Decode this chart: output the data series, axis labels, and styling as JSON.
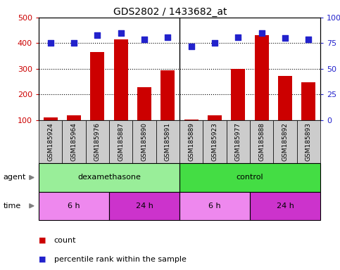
{
  "title": "GDS2802 / 1433682_at",
  "samples": [
    "GSM185924",
    "GSM185964",
    "GSM185976",
    "GSM185887",
    "GSM185890",
    "GSM185891",
    "GSM185889",
    "GSM185923",
    "GSM185977",
    "GSM185888",
    "GSM185892",
    "GSM185893"
  ],
  "counts": [
    110,
    120,
    365,
    415,
    228,
    295,
    103,
    120,
    300,
    430,
    272,
    248
  ],
  "percentile_ranks": [
    75,
    75,
    83,
    85,
    79,
    81,
    72,
    75,
    81,
    85,
    80,
    79
  ],
  "bar_color": "#cc0000",
  "dot_color": "#2222cc",
  "ylim_left": [
    100,
    500
  ],
  "ylim_right": [
    0,
    100
  ],
  "yticks_left": [
    100,
    200,
    300,
    400,
    500
  ],
  "yticks_right": [
    0,
    25,
    50,
    75,
    100
  ],
  "agent_groups": [
    {
      "label": "dexamethasone",
      "start": 0,
      "end": 6,
      "color": "#99ee99"
    },
    {
      "label": "control",
      "start": 6,
      "end": 12,
      "color": "#44dd44"
    }
  ],
  "time_groups": [
    {
      "label": "6 h",
      "start": 0,
      "end": 3,
      "color": "#ee88ee"
    },
    {
      "label": "24 h",
      "start": 3,
      "end": 6,
      "color": "#cc33cc"
    },
    {
      "label": "6 h",
      "start": 6,
      "end": 9,
      "color": "#ee88ee"
    },
    {
      "label": "24 h",
      "start": 9,
      "end": 12,
      "color": "#cc33cc"
    }
  ],
  "background_color": "#ffffff",
  "plot_bg_color": "#ffffff",
  "grid_color": "#000000",
  "tick_label_color_left": "#cc0000",
  "tick_label_color_right": "#2222cc",
  "sample_box_color": "#cccccc",
  "legend_items": [
    {
      "label": "count",
      "color": "#cc0000"
    },
    {
      "label": "percentile rank within the sample",
      "color": "#2222cc"
    }
  ]
}
